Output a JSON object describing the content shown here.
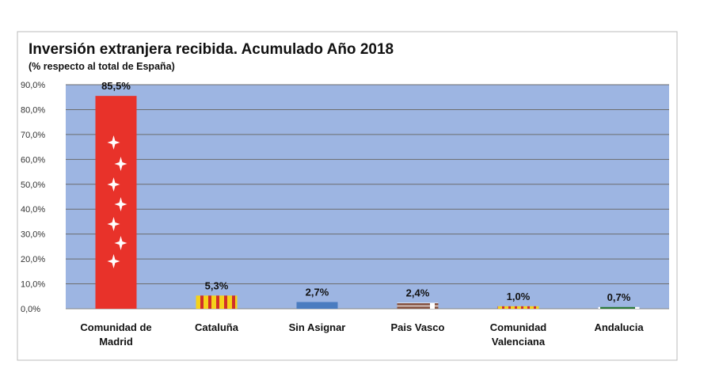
{
  "chart_data": {
    "type": "bar",
    "title": "Inversión extranjera recibida. Acumulado Año 2018",
    "subtitle": "(% respecto al total de España)",
    "xlabel": "",
    "ylabel": "",
    "ylim": [
      0,
      90
    ],
    "grid": true,
    "yticks": [
      0,
      10,
      20,
      30,
      40,
      50,
      60,
      70,
      80,
      90
    ],
    "ytick_labels": [
      "0,0%",
      "10,0%",
      "20,0%",
      "30,0%",
      "40,0%",
      "50,0%",
      "60,0%",
      "70,0%",
      "80,0%",
      "90,0%"
    ],
    "categories": [
      [
        "Comunidad de",
        "Madrid"
      ],
      [
        "Cataluña"
      ],
      [
        "Sin Asignar"
      ],
      [
        "Pais Vasco"
      ],
      [
        "Comunidad",
        "Valenciana"
      ],
      [
        "Andalucia"
      ]
    ],
    "values": [
      85.5,
      5.3,
      2.7,
      2.4,
      1.0,
      0.7
    ],
    "data_labels": [
      "85,5%",
      "5,3%",
      "2,7%",
      "2,4%",
      "1,0%",
      "0,7%"
    ],
    "bar_styles": [
      "madrid",
      "cataluna",
      "plain",
      "paisvasco",
      "valenciana",
      "andalucia"
    ],
    "colors": {
      "plot_bg": "#9db5e2",
      "grid": "#6d6d6d",
      "madrid": "#e8322a",
      "plain": "#4a7cc0",
      "cat_yellow": "#f5d21a",
      "cat_red": "#d0302a",
      "pv_brown": "#8a5a4a",
      "andalucia": "#2d7a3a"
    }
  }
}
